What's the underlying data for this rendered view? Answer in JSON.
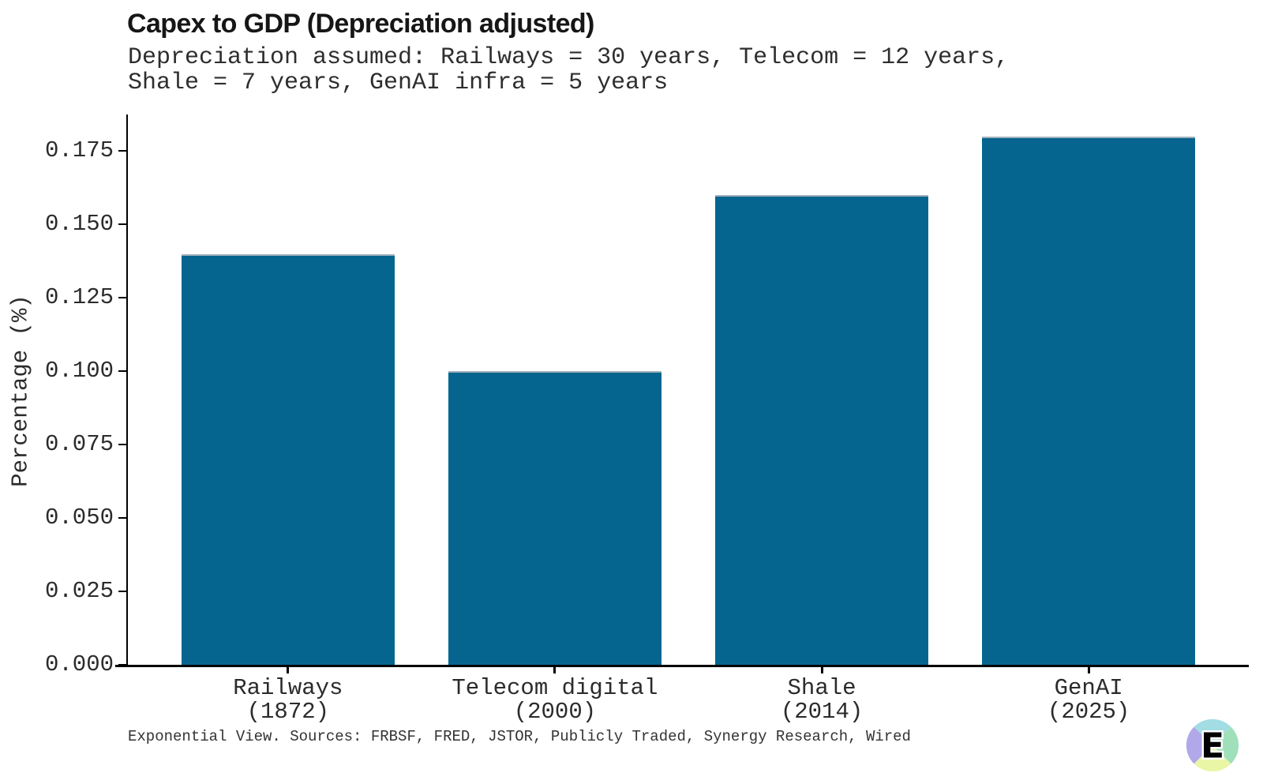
{
  "header": {
    "title": "Capex to GDP (Depreciation adjusted)",
    "subtitle": "Depreciation assumed: Railways = 30 years, Telecom = 12 years,\nShale = 7 years, GenAI infra = 5 years"
  },
  "chart_data": {
    "type": "bar",
    "title": "Capex to GDP (Depreciation adjusted)",
    "subtitle": "Depreciation assumed: Railways = 30 years, Telecom = 12 years, Shale = 7 years, GenAI infra = 5 years",
    "categories": [
      "Railways\n(1872)",
      "Telecom digital\n(2000)",
      "Shale\n(2014)",
      "GenAI\n(2025)"
    ],
    "values": [
      0.14,
      0.1,
      0.16,
      0.18
    ],
    "bar_color": "#06658f",
    "xlabel": "",
    "ylabel": "Percentage (%)",
    "ylim": [
      0,
      0.1875
    ],
    "yticks": [
      "0.000",
      "0.025",
      "0.050",
      "0.075",
      "0.100",
      "0.125",
      "0.150",
      "0.175"
    ],
    "ytick_values": [
      0.0,
      0.025,
      0.05,
      0.075,
      0.1,
      0.125,
      0.15,
      0.175
    ],
    "grid": false,
    "legend": null
  },
  "footer": {
    "credit": "Exponential View. Sources: FRBSF, FRED, JSTOR, Publicly Traded, Synergy Research, Wired"
  },
  "logo": {
    "letter": "E",
    "colors": {
      "top": "#a2dde4",
      "right": "#9fe0ba",
      "bottom": "#e9f6a6",
      "left": "#b0a8e9"
    }
  }
}
